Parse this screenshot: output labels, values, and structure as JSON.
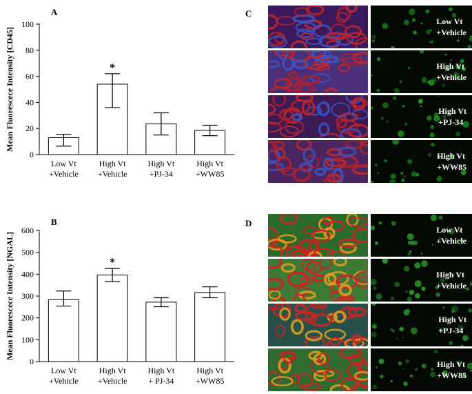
{
  "chart_data": [
    {
      "type": "bar",
      "panel": "A",
      "ylabel": "Mean Fluorescece Intensity [CD45]",
      "ylim": [
        0,
        100
      ],
      "yticks": [
        0,
        20,
        40,
        60,
        80,
        100
      ],
      "categories": [
        [
          "Low Vt",
          "+Vehicle"
        ],
        [
          "High Vt",
          "+Vehicle"
        ],
        [
          "High Vt",
          "+PJ-34"
        ],
        [
          "High Vt",
          "+WW85"
        ]
      ],
      "values": [
        13,
        54,
        23.5,
        18.5
      ],
      "error_upper": [
        15.5,
        62,
        32,
        22.5
      ],
      "error_lower": [
        6.5,
        36,
        15,
        14.5
      ],
      "annotation": {
        "category_index": 1,
        "text": "*"
      }
    },
    {
      "type": "bar",
      "panel": "B",
      "ylabel": "Mean Fluorescece Intensity [NGAL]",
      "ylim": [
        0,
        600
      ],
      "yticks": [
        0,
        100,
        200,
        300,
        400,
        500,
        600
      ],
      "categories": [
        [
          "Low Vt",
          "+Vehicle"
        ],
        [
          "High Vt",
          "+Vehicle"
        ],
        [
          "High Vt",
          "+ PJ-34"
        ],
        [
          "High Vt",
          "+WW85"
        ]
      ],
      "values": [
        283,
        396,
        272,
        316
      ],
      "error_upper": [
        323,
        426,
        292,
        342
      ],
      "error_lower": [
        254,
        366,
        251,
        292
      ],
      "annotation": {
        "category_index": 1,
        "text": "*"
      }
    }
  ],
  "micrographs": [
    {
      "panel": "C",
      "rows": [
        [
          "Low Vt",
          "+Vehicle"
        ],
        [
          "High Vt",
          "+Vehicle"
        ],
        [
          "High Vt",
          "+PJ-34"
        ],
        [
          "High Vt",
          "+WW85"
        ]
      ],
      "merged_colors": [
        "#3a1a5c",
        "#4a2f7a",
        "#3c1a54",
        "#4a2560"
      ],
      "channel_color": "#1f9a1f"
    },
    {
      "panel": "D",
      "rows": [
        [
          "Low Vt",
          "+Vehicle"
        ],
        [
          "High Vt",
          "+Vehicle"
        ],
        [
          "High Vt",
          "+PJ-34"
        ],
        [
          "High Vt",
          "+WW85"
        ]
      ],
      "merged_colors": [
        "#2c6a2c",
        "#3e7a36",
        "#27504a",
        "#2f6a2f"
      ],
      "channel_color": "#2a8f2a"
    }
  ]
}
